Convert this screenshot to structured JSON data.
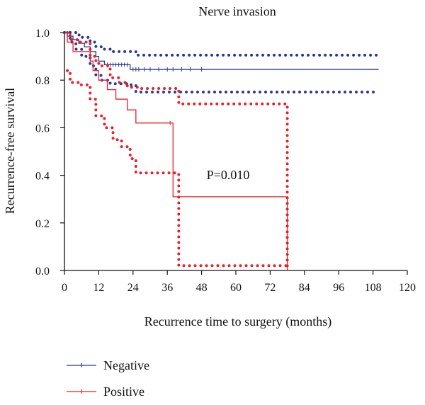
{
  "chart_data": {
    "type": "line",
    "title": "Nerve invasion",
    "xlabel": "Recurrence time to surgery (months)",
    "ylabel": "Recurrence-free survival",
    "xlim": [
      0,
      120
    ],
    "ylim": [
      0,
      1.0
    ],
    "xticks": [
      0,
      12,
      24,
      36,
      48,
      60,
      72,
      84,
      96,
      108,
      120
    ],
    "yticks": [
      0.0,
      0.2,
      0.4,
      0.6,
      0.8,
      1.0
    ],
    "annotation": "P=0.010",
    "legend_position": "bottom-left",
    "series": [
      {
        "name": "Negative",
        "color": "#2b3990",
        "step": [
          [
            0,
            1.0
          ],
          [
            1,
            1.0
          ],
          [
            1,
            0.985
          ],
          [
            3,
            0.985
          ],
          [
            3,
            0.97
          ],
          [
            5,
            0.97
          ],
          [
            5,
            0.955
          ],
          [
            7,
            0.955
          ],
          [
            7,
            0.94
          ],
          [
            9,
            0.94
          ],
          [
            9,
            0.92
          ],
          [
            11,
            0.92
          ],
          [
            11,
            0.9
          ],
          [
            12,
            0.9
          ],
          [
            12,
            0.88
          ],
          [
            14,
            0.88
          ],
          [
            14,
            0.865
          ],
          [
            23,
            0.865
          ],
          [
            23,
            0.845
          ],
          [
            110,
            0.845
          ]
        ],
        "censored_x": [
          15,
          16,
          17,
          18,
          19,
          20,
          21,
          22,
          24,
          25,
          26,
          28,
          30,
          33,
          36,
          38,
          41,
          44,
          48
        ],
        "ci_upper": [
          [
            0,
            1.0
          ],
          [
            2,
            1.0
          ],
          [
            4,
            0.99
          ],
          [
            6,
            0.98
          ],
          [
            9,
            0.96
          ],
          [
            11,
            0.94
          ],
          [
            13,
            0.93
          ],
          [
            16,
            0.92
          ],
          [
            22,
            0.92
          ],
          [
            25,
            0.905
          ],
          [
            110,
            0.905
          ]
        ],
        "ci_lower": [
          [
            0,
            1.0
          ],
          [
            2,
            0.96
          ],
          [
            4,
            0.93
          ],
          [
            6,
            0.9
          ],
          [
            9,
            0.86
          ],
          [
            11,
            0.82
          ],
          [
            13,
            0.8
          ],
          [
            16,
            0.785
          ],
          [
            22,
            0.78
          ],
          [
            25,
            0.75
          ],
          [
            110,
            0.75
          ]
        ]
      },
      {
        "name": "Positive",
        "color": "#e8202a",
        "step": [
          [
            0,
            1.0
          ],
          [
            1,
            1.0
          ],
          [
            1,
            0.96
          ],
          [
            3,
            0.96
          ],
          [
            3,
            0.92
          ],
          [
            9,
            0.92
          ],
          [
            9,
            0.88
          ],
          [
            10,
            0.88
          ],
          [
            10,
            0.84
          ],
          [
            12,
            0.84
          ],
          [
            12,
            0.8
          ],
          [
            15,
            0.8
          ],
          [
            15,
            0.76
          ],
          [
            18,
            0.76
          ],
          [
            18,
            0.72
          ],
          [
            22,
            0.72
          ],
          [
            22,
            0.675
          ],
          [
            25,
            0.675
          ],
          [
            25,
            0.62
          ],
          [
            38,
            0.62
          ],
          [
            38,
            0.31
          ],
          [
            78,
            0.31
          ],
          [
            78,
            0.0
          ]
        ],
        "censored_x": [
          37
        ],
        "ci_upper": [
          [
            1,
            1.0
          ],
          [
            2,
            0.97
          ],
          [
            5,
            0.96
          ],
          [
            9,
            0.9
          ],
          [
            11,
            0.87
          ],
          [
            13,
            0.86
          ],
          [
            16,
            0.81
          ],
          [
            19,
            0.79
          ],
          [
            22,
            0.77
          ],
          [
            26,
            0.765
          ],
          [
            38,
            0.765
          ],
          [
            40,
            0.7
          ],
          [
            78,
            0.7
          ],
          [
            78,
            0.0
          ]
        ],
        "ci_lower": [
          [
            1,
            0.84
          ],
          [
            2,
            0.79
          ],
          [
            5,
            0.78
          ],
          [
            9,
            0.72
          ],
          [
            11,
            0.65
          ],
          [
            14,
            0.6
          ],
          [
            17,
            0.55
          ],
          [
            20,
            0.52
          ],
          [
            23,
            0.47
          ],
          [
            25,
            0.41
          ],
          [
            38,
            0.41
          ],
          [
            40,
            0.02
          ],
          [
            78,
            0.02
          ]
        ]
      }
    ]
  }
}
